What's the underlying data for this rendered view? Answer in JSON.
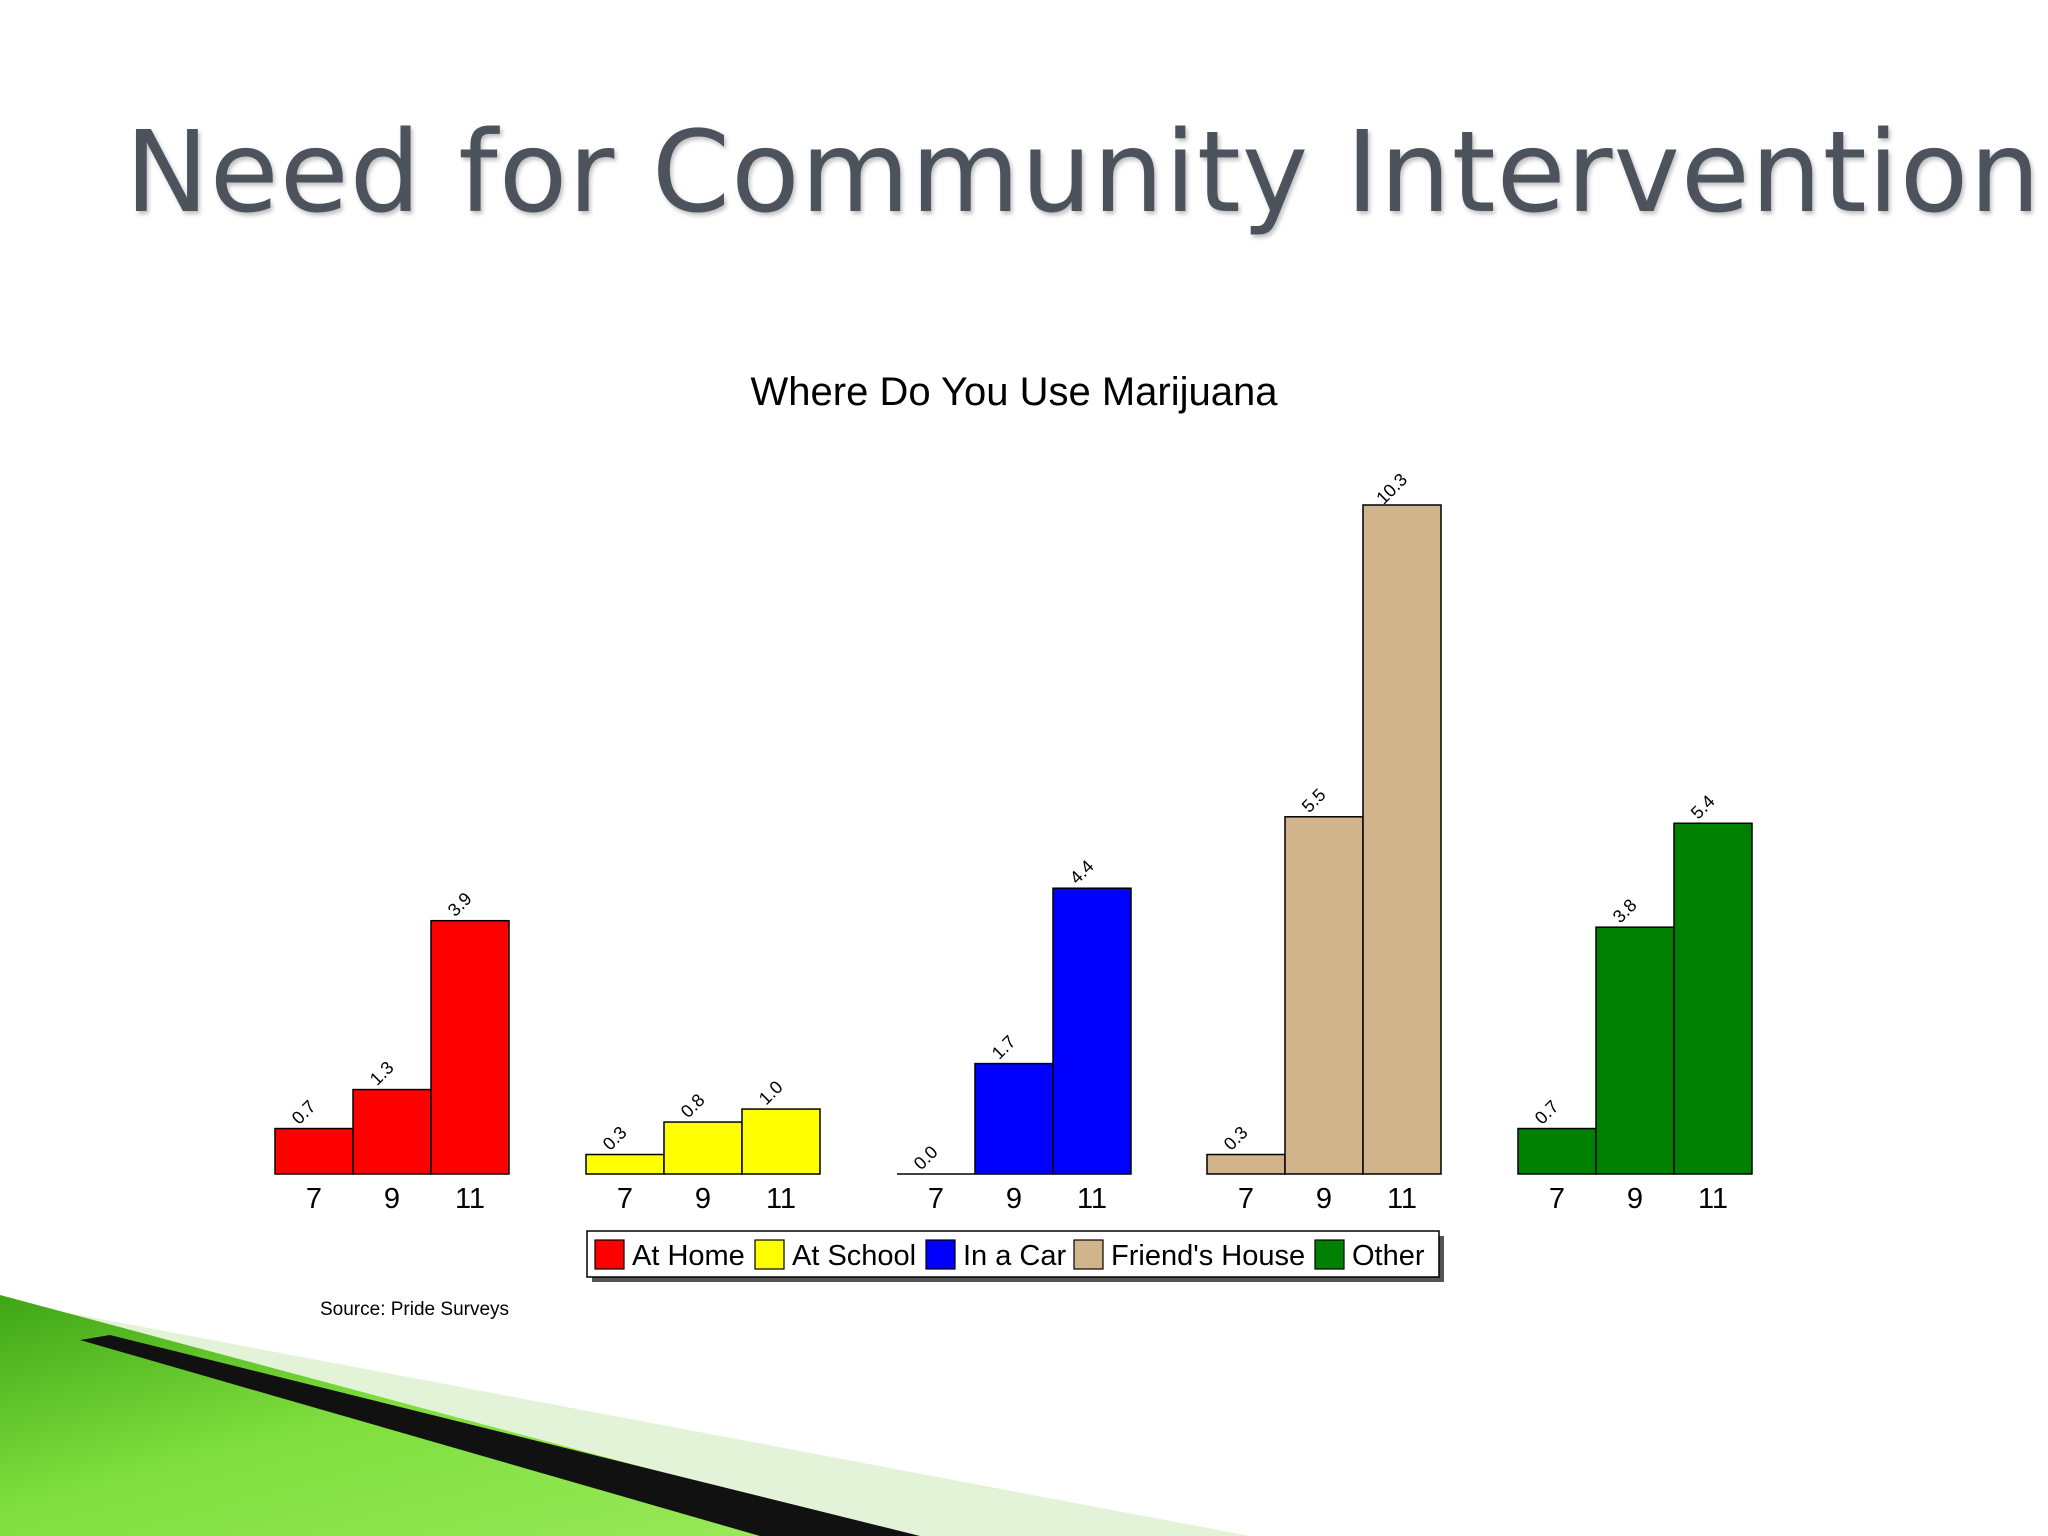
{
  "slide": {
    "title": "Need for Community Intervention",
    "source": "Source: Pride Surveys"
  },
  "colors": {
    "title_text": "#4d535d",
    "accent_green": "#5fcf2a",
    "accent_dark": "#111111"
  },
  "chart_data": {
    "type": "bar",
    "title": "Where Do You Use Marijuana",
    "xlabel": "",
    "ylabel": "",
    "ylim": [
      0,
      10.3
    ],
    "grid": false,
    "legend": "bottom-center",
    "value_labels_rotated": true,
    "categories": [
      "7",
      "9",
      "11"
    ],
    "series": [
      {
        "name": "At Home",
        "color": "#ff0000",
        "values": [
          0.7,
          1.3,
          3.9
        ],
        "labels": [
          "0.7",
          "1.3",
          "3.9"
        ]
      },
      {
        "name": "At School",
        "color": "#ffff00",
        "values": [
          0.3,
          0.8,
          1.0
        ],
        "labels": [
          "0.3",
          "0.8",
          "1.0"
        ]
      },
      {
        "name": "In a Car",
        "color": "#0000ff",
        "values": [
          0.0,
          1.7,
          4.4
        ],
        "labels": [
          "0.0",
          "1.7",
          "4.4"
        ]
      },
      {
        "name": "Friend's House",
        "color": "#d2b48c",
        "values": [
          0.3,
          5.5,
          10.3
        ],
        "labels": [
          "0.3",
          "5.5",
          "10.3"
        ]
      },
      {
        "name": "Other",
        "color": "#008000",
        "values": [
          0.7,
          3.8,
          5.4
        ],
        "labels": [
          "0.7",
          "3.8",
          "5.4"
        ]
      }
    ]
  }
}
